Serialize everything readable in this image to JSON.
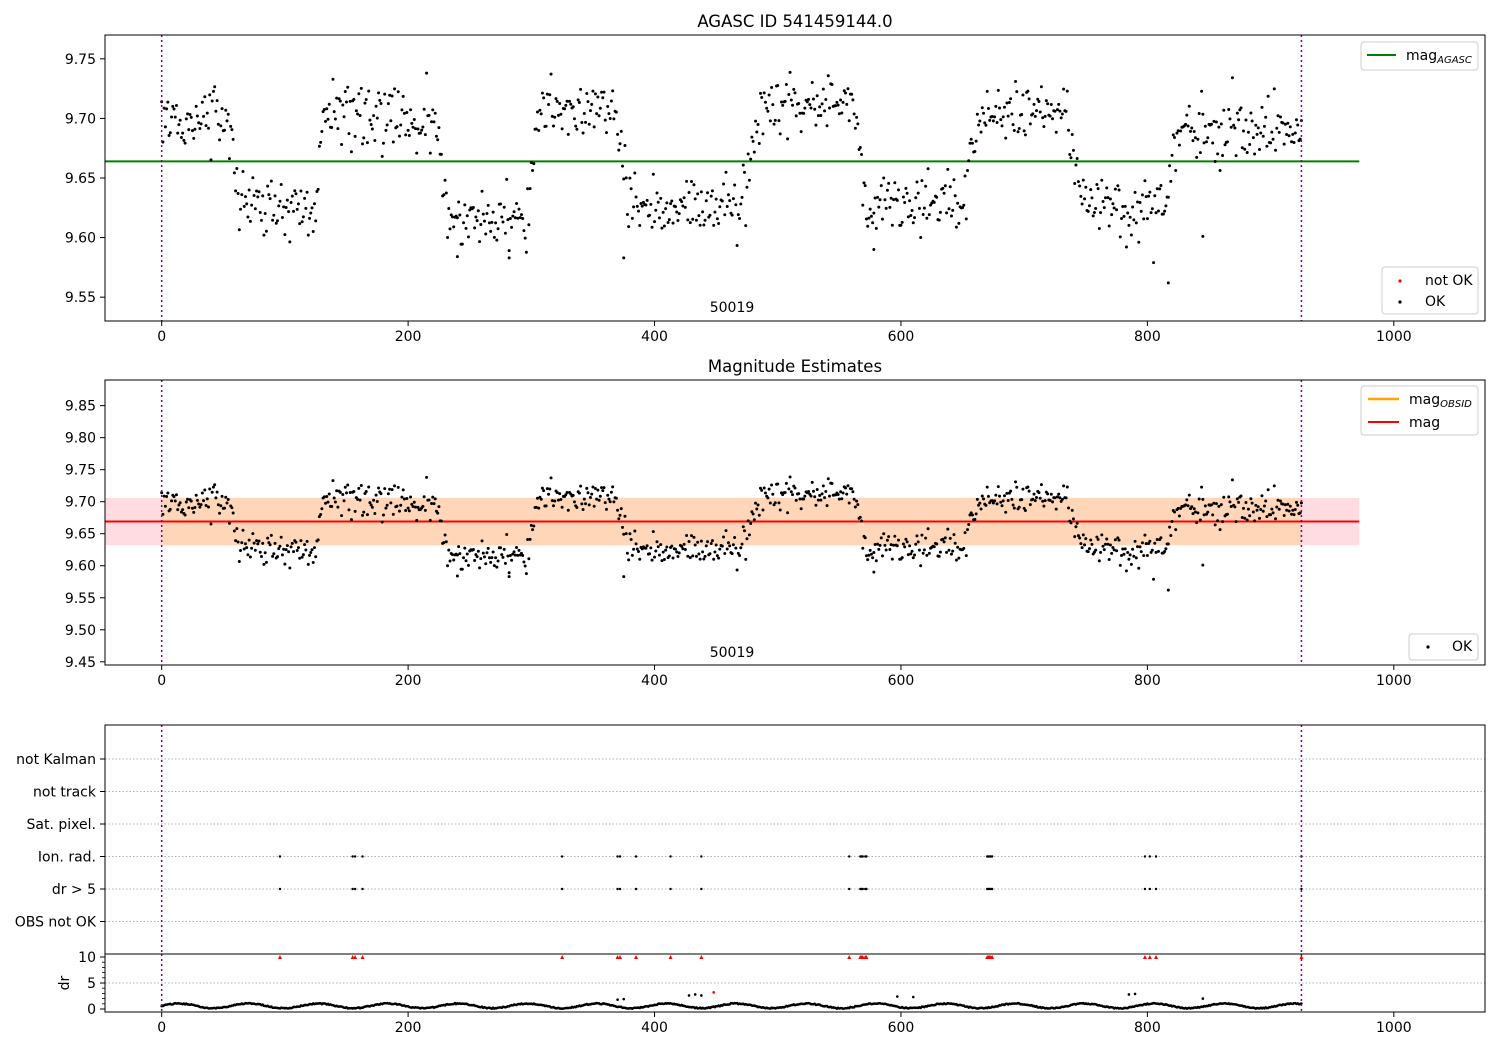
{
  "figure": {
    "x_ticks": [
      "0",
      "200",
      "400",
      "600",
      "800",
      "1000"
    ]
  },
  "chart_data": [
    {
      "type": "scatter",
      "title": "AGASC ID 541459144.0",
      "xlim": [
        -46,
        1074
      ],
      "ylim": [
        9.53,
        9.77
      ],
      "y_ticks": [
        "9.55",
        "9.60",
        "9.65",
        "9.70",
        "9.75"
      ],
      "obsid_boundaries": [
        0,
        925
      ],
      "obsid_label": "50019",
      "obsid_label_x": 462,
      "mag_agasc": 9.664,
      "mag_agasc_span": [
        -46,
        972
      ],
      "legend_top": {
        "label": "mag",
        "subscript": "AGASC"
      },
      "legend_bottom": [
        {
          "label": "not OK",
          "color": "#ff0000"
        },
        {
          "label": "OK",
          "color": "#000000"
        }
      ]
    },
    {
      "type": "scatter",
      "title": "Magnitude Estimates",
      "xlim": [
        -46,
        1074
      ],
      "ylim": [
        9.445,
        9.89
      ],
      "y_ticks": [
        "9.45",
        "9.50",
        "9.55",
        "9.60",
        "9.65",
        "9.70",
        "9.75",
        "9.80",
        "9.85"
      ],
      "obsid_label": "50019",
      "mag": 9.669,
      "mag_band": [
        9.632,
        9.706
      ],
      "mag_span": [
        -46,
        972
      ],
      "mag_obsid": 9.669,
      "mag_obsid_band": [
        9.632,
        9.706
      ],
      "mag_obsid_span": [
        0,
        925
      ],
      "legend_top": [
        {
          "label": "mag",
          "subscript": "OBSID",
          "color": "#ffa500"
        },
        {
          "label": "mag",
          "subscript": "",
          "color": "#ff0000"
        }
      ],
      "legend_bottom": [
        {
          "label": "OK",
          "color": "#000000"
        }
      ]
    },
    {
      "type": "scatter",
      "title": "",
      "categories": [
        "not Kalman",
        "not track",
        "Sat. pixel.",
        "Ion. rad.",
        "dr > 5",
        "OBS not OK"
      ],
      "flag_times": [
        96,
        155,
        157,
        163,
        325,
        370,
        372,
        385,
        413,
        438,
        558,
        567,
        568,
        569,
        571,
        572,
        670,
        671,
        672,
        673,
        674,
        798,
        802,
        807
      ],
      "flag_rows": [
        "Ion. rad.",
        "dr > 5"
      ]
    },
    {
      "type": "scatter",
      "title": "",
      "ylabel": "dr",
      "y_ticks": [
        "0",
        "5",
        "10"
      ],
      "ylim": [
        -0.5,
        10
      ],
      "clipped_value": 10,
      "clipped_times": [
        96,
        155,
        157,
        163,
        325,
        370,
        372,
        385,
        413,
        438,
        558,
        567,
        568,
        569,
        571,
        572,
        670,
        671,
        672,
        673,
        674,
        798,
        802,
        807,
        925
      ],
      "outliers": [
        {
          "x": 370,
          "y": 1.8
        },
        {
          "x": 375,
          "y": 1.9
        },
        {
          "x": 428,
          "y": 2.6
        },
        {
          "x": 433,
          "y": 2.8
        },
        {
          "x": 438,
          "y": 2.6
        },
        {
          "x": 448,
          "y": 3.2
        },
        {
          "x": 597,
          "y": 2.4
        },
        {
          "x": 610,
          "y": 2.3
        },
        {
          "x": 785,
          "y": 2.8
        },
        {
          "x": 790,
          "y": 2.9
        },
        {
          "x": 845,
          "y": 2.0
        }
      ]
    }
  ],
  "series": {
    "time_range": [
      0,
      925
    ],
    "period": 163,
    "phase_times": [
      0,
      55,
      63,
      125,
      130,
      222,
      232,
      295,
      310,
      368,
      380,
      470,
      488,
      563,
      570,
      650,
      662,
      735,
      745,
      815,
      825,
      925
    ],
    "phase_levels": [
      9.7,
      9.7,
      9.627,
      9.627,
      9.7,
      9.7,
      9.615,
      9.615,
      9.707,
      9.707,
      9.626,
      9.626,
      9.71,
      9.71,
      9.628,
      9.628,
      9.707,
      9.707,
      9.628,
      9.628,
      9.69,
      9.69
    ]
  }
}
